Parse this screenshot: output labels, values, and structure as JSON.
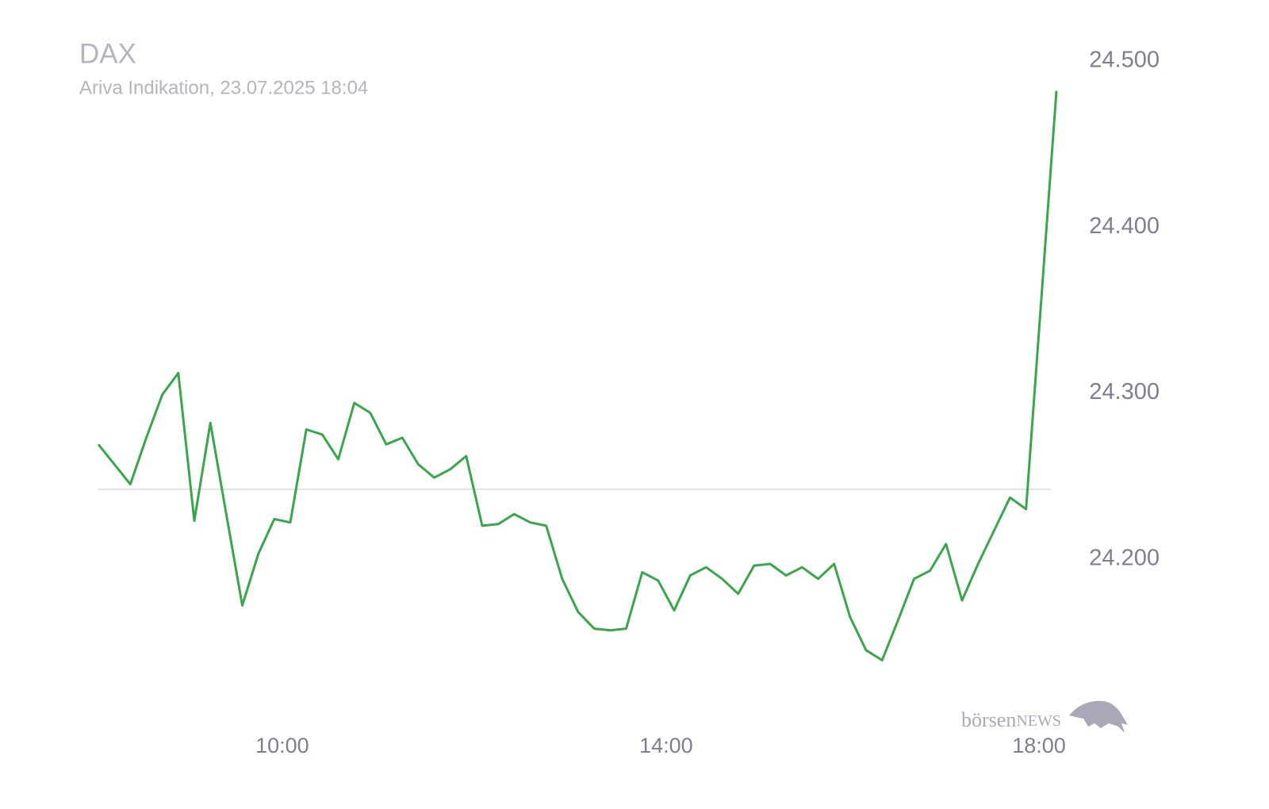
{
  "chart_data": {
    "type": "line",
    "title": "DAX",
    "subtitle": "Ariva Indikation, 23.07.2025 18:04",
    "x": [
      "08:05",
      "08:15",
      "08:25",
      "08:35",
      "08:45",
      "08:55",
      "09:05",
      "09:15",
      "09:25",
      "09:35",
      "09:45",
      "09:55",
      "10:05",
      "10:15",
      "10:25",
      "10:35",
      "10:45",
      "10:55",
      "11:05",
      "11:15",
      "11:25",
      "11:35",
      "11:45",
      "11:55",
      "12:05",
      "12:15",
      "12:25",
      "12:35",
      "12:45",
      "12:55",
      "13:05",
      "13:15",
      "13:25",
      "13:35",
      "13:45",
      "13:55",
      "14:05",
      "14:15",
      "14:25",
      "14:35",
      "14:45",
      "14:55",
      "15:05",
      "15:15",
      "15:25",
      "15:35",
      "15:45",
      "15:55",
      "16:05",
      "16:15",
      "16:25",
      "16:35",
      "16:45",
      "16:55",
      "17:05",
      "17:15",
      "17:25",
      "17:35",
      "17:45",
      "18:04"
    ],
    "values": [
      24269,
      24257,
      24245,
      24273,
      24299,
      24312,
      24223,
      24282,
      24227,
      24172,
      24203,
      24224,
      24222,
      24278,
      24275,
      24260,
      24294,
      24288,
      24269,
      24273,
      24257,
      24249,
      24254,
      24262,
      24220,
      24221,
      24227,
      24222,
      24220,
      24188,
      24168,
      24158,
      24157,
      24158,
      24192,
      24187,
      24169,
      24190,
      24195,
      24188,
      24179,
      24196,
      24197,
      24190,
      24195,
      24188,
      24197,
      24165,
      24145,
      24139,
      24163,
      24188,
      24193,
      24209,
      24175,
      24197,
      24217,
      24237,
      24230,
      24482
    ],
    "color": "#3aa64b",
    "baseline": 24242,
    "baseline_color": "#d8d8de",
    "xlim": [
      "08:05",
      "18:04"
    ],
    "xticks": [
      "10:00",
      "14:00",
      "18:00"
    ],
    "ylim": [
      24100,
      24520
    ],
    "yticks": [
      {
        "value": 24200,
        "label": "24.200"
      },
      {
        "value": 24300,
        "label": "24.300"
      },
      {
        "value": 24400,
        "label": "24.400"
      },
      {
        "value": 24500,
        "label": "24.500"
      }
    ],
    "watermark": [
      "börsen",
      "NEWS"
    ]
  }
}
